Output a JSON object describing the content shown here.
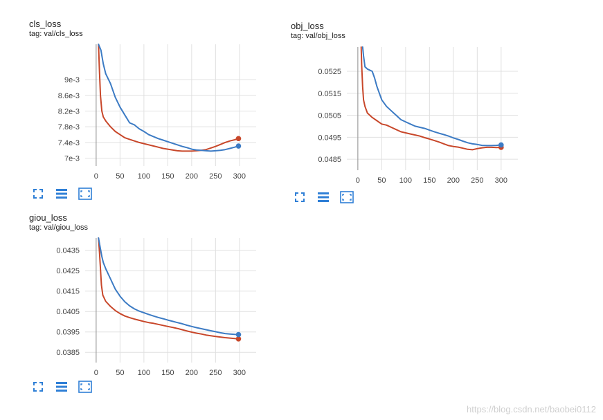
{
  "colors": {
    "blue": "#3c7bc4",
    "red": "#c8472a",
    "grid": "#e0e0e0",
    "axis": "#9e9e9e",
    "icon": "#2f7fd6"
  },
  "toolbar_icons": [
    "fullscreen-icon",
    "data-table-icon",
    "fit-domain-icon"
  ],
  "watermark": "https://blog.csdn.net/baobei0112",
  "charts": [
    {
      "title": "cls_loss",
      "tag": "tag: val/cls_loss"
    },
    {
      "title": "obj_loss",
      "tag": "tag: val/obj_loss"
    },
    {
      "title": "giou_loss",
      "tag": "tag: val/giou_loss"
    }
  ],
  "chart_data": [
    {
      "type": "line",
      "title": "cls_loss",
      "subtitle": "tag: val/cls_loss",
      "xlim": [
        -23,
        335
      ],
      "ylim": [
        0.0068,
        0.0099
      ],
      "xticks": [
        0,
        50,
        100,
        150,
        200,
        250,
        300
      ],
      "xtick_labels": [
        "0",
        "50",
        "100",
        "150",
        "200",
        "250",
        "300"
      ],
      "yticks": [
        0.007,
        0.0074,
        0.0078,
        0.0082,
        0.0086,
        0.009
      ],
      "ytick_labels": [
        "7e-3",
        "7.4e-3",
        "7.8e-3",
        "8.2e-3",
        "8.6e-3",
        "9e-3"
      ],
      "grid": true,
      "series": [
        {
          "color": "#3c7bc4",
          "x": [
            5,
            10,
            15,
            20,
            30,
            40,
            50,
            60,
            70,
            80,
            90,
            100,
            110,
            120,
            130,
            140,
            150,
            160,
            170,
            180,
            190,
            200,
            210,
            220,
            230,
            240,
            250,
            260,
            270,
            280,
            290,
            298
          ],
          "y": [
            0.0099,
            0.00975,
            0.0094,
            0.00915,
            0.0089,
            0.00855,
            0.0083,
            0.0081,
            0.0079,
            0.00785,
            0.00775,
            0.00768,
            0.0076,
            0.00755,
            0.0075,
            0.00746,
            0.00742,
            0.00738,
            0.00734,
            0.0073,
            0.00727,
            0.00723,
            0.00721,
            0.0072,
            0.00719,
            0.00718,
            0.00719,
            0.0072,
            0.00722,
            0.00725,
            0.00728,
            0.00731
          ]
        },
        {
          "color": "#c8472a",
          "x": [
            5,
            7,
            9,
            12,
            15,
            20,
            30,
            40,
            50,
            60,
            70,
            80,
            90,
            100,
            110,
            120,
            130,
            140,
            150,
            160,
            170,
            180,
            190,
            200,
            210,
            220,
            230,
            240,
            250,
            260,
            270,
            280,
            290,
            298
          ],
          "y": [
            0.0099,
            0.0092,
            0.0086,
            0.0082,
            0.00805,
            0.00795,
            0.0078,
            0.00768,
            0.0076,
            0.00752,
            0.00748,
            0.00744,
            0.0074,
            0.00737,
            0.00734,
            0.00731,
            0.00728,
            0.00725,
            0.00723,
            0.00721,
            0.00719,
            0.00718,
            0.00718,
            0.00718,
            0.00719,
            0.0072,
            0.00722,
            0.00726,
            0.0073,
            0.00735,
            0.0074,
            0.00744,
            0.00747,
            0.0075
          ]
        }
      ]
    },
    {
      "type": "line",
      "title": "obj_loss",
      "subtitle": "tag: val/obj_loss",
      "xlim": [
        -23,
        335
      ],
      "ylim": [
        0.048,
        0.0536
      ],
      "xticks": [
        0,
        50,
        100,
        150,
        200,
        250,
        300
      ],
      "xtick_labels": [
        "0",
        "50",
        "100",
        "150",
        "200",
        "250",
        "300"
      ],
      "yticks": [
        0.0485,
        0.0495,
        0.0505,
        0.0515,
        0.0525
      ],
      "ytick_labels": [
        "0.0485",
        "0.0495",
        "0.0505",
        "0.0515",
        "0.0525"
      ],
      "grid": true,
      "series": [
        {
          "color": "#3c7bc4",
          "x": [
            10,
            12,
            15,
            20,
            30,
            35,
            40,
            50,
            60,
            70,
            80,
            90,
            100,
            110,
            120,
            130,
            140,
            150,
            160,
            170,
            180,
            190,
            200,
            210,
            220,
            230,
            240,
            250,
            260,
            270,
            280,
            290,
            300
          ],
          "y": [
            0.0536,
            0.0532,
            0.0527,
            0.0526,
            0.0525,
            0.0522,
            0.0518,
            0.0512,
            0.0509,
            0.0507,
            0.0505,
            0.0503,
            0.0502,
            0.0501,
            0.05,
            0.04995,
            0.0499,
            0.04982,
            0.04975,
            0.04968,
            0.04962,
            0.04955,
            0.04947,
            0.0494,
            0.04932,
            0.04925,
            0.0492,
            0.04917,
            0.04913,
            0.04912,
            0.04912,
            0.04913,
            0.04915
          ]
        },
        {
          "color": "#c8472a",
          "x": [
            7,
            8,
            10,
            12,
            15,
            20,
            30,
            40,
            50,
            60,
            70,
            80,
            90,
            100,
            110,
            120,
            130,
            140,
            150,
            160,
            170,
            180,
            190,
            200,
            210,
            220,
            230,
            240,
            250,
            260,
            270,
            280,
            290,
            300
          ],
          "y": [
            0.0536,
            0.0528,
            0.0518,
            0.0512,
            0.0509,
            0.0506,
            0.0504,
            0.05025,
            0.0501,
            0.05005,
            0.04995,
            0.04985,
            0.04975,
            0.0497,
            0.04965,
            0.0496,
            0.04955,
            0.04948,
            0.04942,
            0.04935,
            0.04928,
            0.0492,
            0.04912,
            0.04908,
            0.04905,
            0.049,
            0.04895,
            0.04893,
            0.04898,
            0.04902,
            0.04904,
            0.04904,
            0.04903,
            0.04904
          ]
        }
      ]
    },
    {
      "type": "line",
      "title": "giou_loss",
      "subtitle": "tag: val/giou_loss",
      "xlim": [
        -23,
        335
      ],
      "ylim": [
        0.038,
        0.0441
      ],
      "xticks": [
        0,
        50,
        100,
        150,
        200,
        250,
        300
      ],
      "xtick_labels": [
        "0",
        "50",
        "100",
        "150",
        "200",
        "250",
        "300"
      ],
      "yticks": [
        0.0385,
        0.0395,
        0.0405,
        0.0415,
        0.0425,
        0.0435
      ],
      "ytick_labels": [
        "0.0385",
        "0.0395",
        "0.0405",
        "0.0415",
        "0.0425",
        "0.0435"
      ],
      "grid": true,
      "series": [
        {
          "color": "#3c7bc4",
          "x": [
            5,
            8,
            12,
            15,
            20,
            30,
            40,
            50,
            60,
            70,
            80,
            90,
            100,
            110,
            120,
            130,
            140,
            150,
            160,
            170,
            180,
            190,
            200,
            210,
            220,
            230,
            240,
            250,
            260,
            270,
            280,
            290,
            298
          ],
          "y": [
            0.0441,
            0.0437,
            0.0432,
            0.0429,
            0.0426,
            0.0421,
            0.0416,
            0.04125,
            0.04098,
            0.04078,
            0.04063,
            0.04052,
            0.04044,
            0.04036,
            0.04028,
            0.04021,
            0.04015,
            0.04008,
            0.04002,
            0.03996,
            0.0399,
            0.03983,
            0.03977,
            0.03971,
            0.03966,
            0.03961,
            0.03956,
            0.03951,
            0.03946,
            0.03942,
            0.0394,
            0.03938,
            0.03937
          ]
        },
        {
          "color": "#c8472a",
          "x": [
            5,
            7,
            9,
            11,
            14,
            20,
            30,
            40,
            50,
            60,
            70,
            80,
            90,
            100,
            110,
            120,
            130,
            140,
            150,
            160,
            170,
            180,
            190,
            200,
            210,
            220,
            230,
            240,
            250,
            260,
            270,
            280,
            290,
            298
          ],
          "y": [
            0.0441,
            0.0434,
            0.0426,
            0.0418,
            0.0413,
            0.041,
            0.04075,
            0.04055,
            0.0404,
            0.04028,
            0.0402,
            0.04013,
            0.04007,
            0.04001,
            0.03996,
            0.03992,
            0.03987,
            0.03982,
            0.03977,
            0.03972,
            0.03967,
            0.03961,
            0.03955,
            0.03949,
            0.03944,
            0.0394,
            0.03935,
            0.03931,
            0.03928,
            0.03925,
            0.03922,
            0.0392,
            0.03918,
            0.03916
          ]
        }
      ]
    }
  ]
}
